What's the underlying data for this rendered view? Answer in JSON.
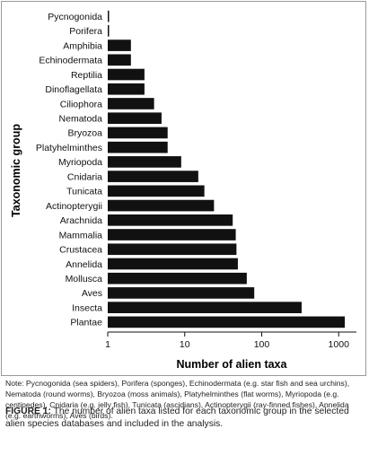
{
  "chart_data": {
    "type": "bar",
    "orientation": "horizontal",
    "scale": "log",
    "categories": [
      "Pycnogonida",
      "Porifera",
      "Amphibia",
      "Echinodermata",
      "Reptilia",
      "Dinoflagellata",
      "Ciliophora",
      "Nematoda",
      "Bryozoa",
      "Platyhelminthes",
      "Myriopoda",
      "Cnidaria",
      "Tunicata",
      "Actinopterygii",
      "Arachnida",
      "Mammalia",
      "Crustacea",
      "Annelida",
      "Mollusca",
      "Aves",
      "Insecta",
      "Plantae"
    ],
    "values": [
      1,
      1,
      2,
      2,
      3,
      3,
      4,
      5,
      6,
      6,
      9,
      15,
      18,
      24,
      42,
      46,
      47,
      49,
      64,
      80,
      330,
      1200
    ],
    "xlabel": "Number of alien taxa",
    "ylabel": "Taxonomic group",
    "xlim": [
      1,
      1700
    ],
    "xticks": [
      1,
      10,
      100,
      1000
    ],
    "xtick_labels": [
      "1",
      "10",
      "100",
      "1000"
    ],
    "bar_color": "#111111",
    "grid": false
  },
  "note": "Note: Pycnogonida (sea spiders), Porifera (sponges), Echinodermata (e.g. star fish and sea urchins), Nematoda (round worms), Bryozoa (moss animals), Platyhelminthes (flat worms), Myriopoda (e.g. centipedes), Cnidaria (e.g. jelly fish), Tunicata (ascidians), Actinopterygii (ray-finned fishes), Annelida (e.g. earthworms), Aves (birds).",
  "caption": {
    "label": "FIGURE 1:",
    "text": "The number of alien taxa listed for each taxonomic group in the selected alien species databases and included in the analysis."
  }
}
